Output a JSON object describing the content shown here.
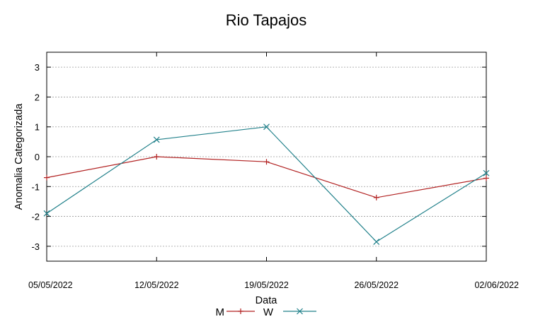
{
  "chart_data": {
    "type": "line",
    "title": "Rio Tapajos",
    "xlabel": "Data",
    "ylabel": "Anomalia Categorizada",
    "categories": [
      "05/05/2022",
      "12/05/2022",
      "19/05/2022",
      "26/05/2022",
      "02/06/2022"
    ],
    "ylim": [
      -3.5,
      3.5
    ],
    "yticks": [
      "3",
      "2",
      "1",
      "0",
      "-1",
      "-2",
      "-3"
    ],
    "grid": "horizontal-dashed",
    "legend_position": "bottom",
    "series": [
      {
        "name": "M",
        "color": "#b22222",
        "marker": "plus",
        "values": [
          -0.7,
          0.0,
          -0.17,
          -1.37,
          -0.72
        ]
      },
      {
        "name": "W",
        "color": "#20808a",
        "marker": "cross",
        "values": [
          -1.9,
          0.57,
          1.0,
          -2.85,
          -0.55
        ]
      }
    ]
  }
}
